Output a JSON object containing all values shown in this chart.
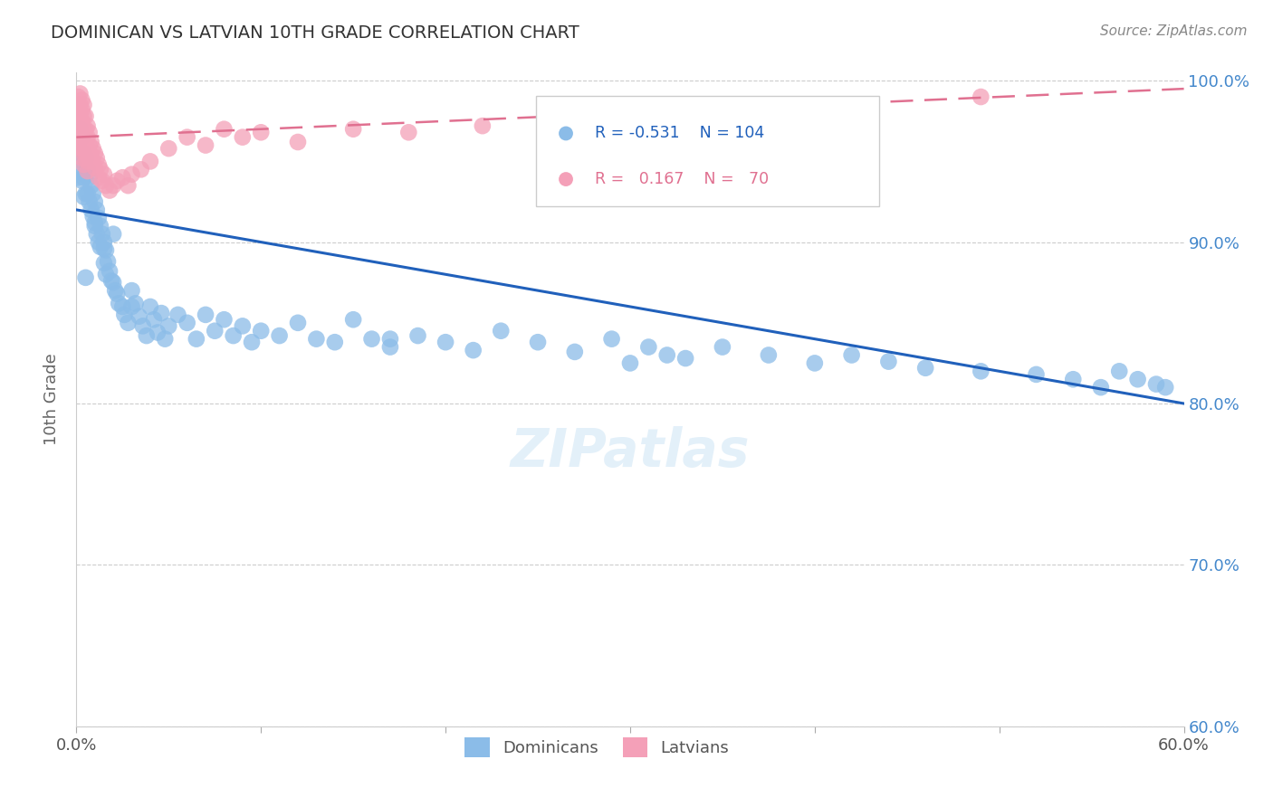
{
  "title": "DOMINICAN VS LATVIAN 10TH GRADE CORRELATION CHART",
  "source": "Source: ZipAtlas.com",
  "ylabel": "10th Grade",
  "blue_R": -0.531,
  "blue_N": 104,
  "pink_R": 0.167,
  "pink_N": 70,
  "xlim": [
    0.0,
    0.6
  ],
  "ylim": [
    0.6,
    1.005
  ],
  "yticks": [
    0.6,
    0.7,
    0.8,
    0.9,
    1.0
  ],
  "xticks": [
    0.0,
    0.1,
    0.2,
    0.3,
    0.4,
    0.5,
    0.6
  ],
  "ytick_labels": [
    "60.0%",
    "70.0%",
    "80.0%",
    "90.0%",
    "100.0%"
  ],
  "blue_color": "#8bbce8",
  "blue_line_color": "#2060bb",
  "pink_color": "#f4a0b8",
  "pink_line_color": "#e07090",
  "watermark": "ZIPatlas",
  "blue_scatter": {
    "x": [
      0.001,
      0.001,
      0.002,
      0.002,
      0.002,
      0.003,
      0.003,
      0.003,
      0.004,
      0.004,
      0.004,
      0.005,
      0.005,
      0.005,
      0.006,
      0.006,
      0.007,
      0.007,
      0.008,
      0.008,
      0.009,
      0.009,
      0.01,
      0.01,
      0.011,
      0.011,
      0.012,
      0.012,
      0.013,
      0.013,
      0.014,
      0.015,
      0.015,
      0.016,
      0.016,
      0.017,
      0.018,
      0.019,
      0.02,
      0.021,
      0.022,
      0.023,
      0.025,
      0.026,
      0.028,
      0.03,
      0.032,
      0.034,
      0.036,
      0.038,
      0.04,
      0.042,
      0.044,
      0.046,
      0.048,
      0.05,
      0.055,
      0.06,
      0.065,
      0.07,
      0.075,
      0.08,
      0.085,
      0.09,
      0.095,
      0.1,
      0.11,
      0.12,
      0.13,
      0.14,
      0.15,
      0.16,
      0.17,
      0.185,
      0.2,
      0.215,
      0.23,
      0.25,
      0.27,
      0.29,
      0.31,
      0.33,
      0.35,
      0.375,
      0.4,
      0.42,
      0.44,
      0.46,
      0.49,
      0.52,
      0.54,
      0.555,
      0.565,
      0.575,
      0.585,
      0.59,
      0.3,
      0.32,
      0.17,
      0.03,
      0.01,
      0.005,
      0.015,
      0.02
    ],
    "y": [
      0.96,
      0.94,
      0.97,
      0.955,
      0.945,
      0.965,
      0.95,
      0.938,
      0.955,
      0.94,
      0.928,
      0.952,
      0.942,
      0.93,
      0.945,
      0.93,
      0.94,
      0.925,
      0.935,
      0.92,
      0.93,
      0.916,
      0.925,
      0.912,
      0.92,
      0.905,
      0.915,
      0.9,
      0.91,
      0.897,
      0.905,
      0.9,
      0.887,
      0.895,
      0.88,
      0.888,
      0.882,
      0.876,
      0.875,
      0.87,
      0.868,
      0.862,
      0.86,
      0.855,
      0.85,
      0.87,
      0.862,
      0.854,
      0.848,
      0.842,
      0.86,
      0.852,
      0.844,
      0.856,
      0.84,
      0.848,
      0.855,
      0.85,
      0.84,
      0.855,
      0.845,
      0.852,
      0.842,
      0.848,
      0.838,
      0.845,
      0.842,
      0.85,
      0.84,
      0.838,
      0.852,
      0.84,
      0.835,
      0.842,
      0.838,
      0.833,
      0.845,
      0.838,
      0.832,
      0.84,
      0.835,
      0.828,
      0.835,
      0.83,
      0.825,
      0.83,
      0.826,
      0.822,
      0.82,
      0.818,
      0.815,
      0.81,
      0.82,
      0.815,
      0.812,
      0.81,
      0.825,
      0.83,
      0.84,
      0.86,
      0.91,
      0.878,
      0.896,
      0.905
    ]
  },
  "pink_scatter": {
    "x": [
      0.001,
      0.001,
      0.001,
      0.001,
      0.002,
      0.002,
      0.002,
      0.002,
      0.002,
      0.002,
      0.003,
      0.003,
      0.003,
      0.003,
      0.003,
      0.003,
      0.003,
      0.004,
      0.004,
      0.004,
      0.004,
      0.004,
      0.004,
      0.005,
      0.005,
      0.005,
      0.005,
      0.006,
      0.006,
      0.006,
      0.006,
      0.006,
      0.007,
      0.007,
      0.007,
      0.008,
      0.008,
      0.009,
      0.009,
      0.01,
      0.01,
      0.011,
      0.012,
      0.012,
      0.013,
      0.014,
      0.015,
      0.016,
      0.018,
      0.02,
      0.022,
      0.025,
      0.028,
      0.03,
      0.035,
      0.04,
      0.05,
      0.06,
      0.07,
      0.08,
      0.09,
      0.1,
      0.12,
      0.15,
      0.18,
      0.22,
      0.27,
      0.3,
      0.42,
      0.49
    ],
    "y": [
      0.99,
      0.985,
      0.98,
      0.975,
      0.992,
      0.985,
      0.978,
      0.97,
      0.965,
      0.96,
      0.988,
      0.982,
      0.975,
      0.968,
      0.962,
      0.958,
      0.952,
      0.985,
      0.978,
      0.97,
      0.962,
      0.955,
      0.948,
      0.978,
      0.97,
      0.963,
      0.955,
      0.972,
      0.965,
      0.958,
      0.95,
      0.944,
      0.968,
      0.96,
      0.952,
      0.962,
      0.954,
      0.958,
      0.95,
      0.955,
      0.946,
      0.952,
      0.948,
      0.94,
      0.945,
      0.938,
      0.942,
      0.935,
      0.932,
      0.935,
      0.938,
      0.94,
      0.935,
      0.942,
      0.945,
      0.95,
      0.958,
      0.965,
      0.96,
      0.97,
      0.965,
      0.968,
      0.962,
      0.97,
      0.968,
      0.972,
      0.975,
      0.978,
      0.98,
      0.99
    ]
  },
  "blue_line": {
    "x0": 0.0,
    "x1": 0.6,
    "y0": 0.92,
    "y1": 0.8
  },
  "pink_line": {
    "x0": 0.0,
    "x1": 0.6,
    "y0": 0.965,
    "y1": 0.995
  }
}
